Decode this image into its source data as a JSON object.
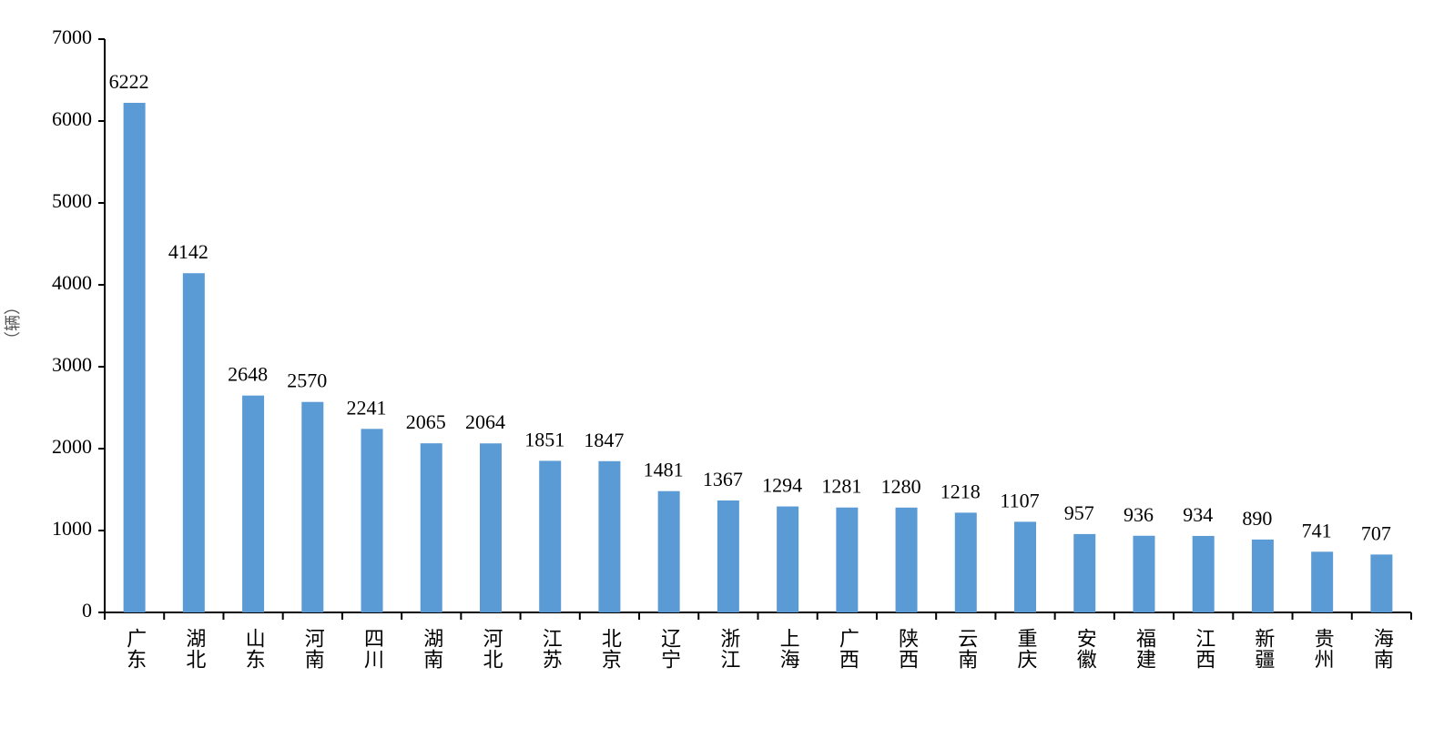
{
  "chart_data": {
    "type": "bar",
    "y_label": "（辆）",
    "categories": [
      "广东",
      "湖北",
      "山东",
      "河南",
      "四川",
      "湖南",
      "河北",
      "江苏",
      "北京",
      "辽宁",
      "浙江",
      "上海",
      "广西",
      "陕西",
      "云南",
      "重庆",
      "安徽",
      "福建",
      "江西",
      "新疆",
      "贵州",
      "海南"
    ],
    "values": [
      6222,
      4142,
      2648,
      2570,
      2241,
      2065,
      2064,
      1851,
      1847,
      1481,
      1367,
      1294,
      1281,
      1280,
      1218,
      1107,
      957,
      936,
      934,
      890,
      741,
      707
    ],
    "color": "#5b9bd5",
    "ylim": [
      0,
      7000
    ],
    "yticks": [
      0,
      1000,
      2000,
      3000,
      4000,
      5000,
      6000,
      7000
    ],
    "grid": false
  }
}
